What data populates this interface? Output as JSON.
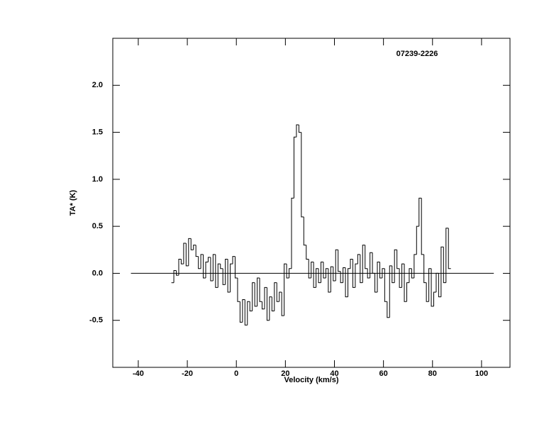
{
  "chart_data": {
    "type": "step",
    "title": "07239-2226",
    "x_label": "Velocity (km/s)",
    "y_label": "TA* (K)",
    "xlim": [
      -50.4,
      111.6
    ],
    "ylim": [
      -1.0,
      2.5
    ],
    "xticks": [
      -40,
      -20,
      0,
      20,
      40,
      60,
      80,
      100
    ],
    "yticks": [
      -0.5,
      {
        "value": 0,
        "label": "0.0"
      },
      0.5,
      {
        "value": 1,
        "label": "1.0"
      },
      1.5,
      {
        "value": 2,
        "label": "2.0"
      }
    ],
    "hline": {
      "y": 0,
      "xmin": -43,
      "xmax": 105
    },
    "color": "#000000",
    "x": [
      -26,
      -25,
      -24,
      -23,
      -22,
      -21,
      -20,
      -19,
      -18,
      -17,
      -16,
      -15,
      -14,
      -13,
      -12,
      -11,
      -10,
      -9,
      -8,
      -7,
      -6,
      -5,
      -4,
      -3,
      -2,
      -1,
      0,
      1,
      2,
      3,
      4,
      5,
      6,
      7,
      8,
      9,
      10,
      11,
      12,
      13,
      14,
      15,
      16,
      17,
      18,
      19,
      20,
      21,
      22,
      23,
      24,
      25,
      26,
      27,
      28,
      29,
      30,
      31,
      32,
      33,
      34,
      35,
      36,
      37,
      38,
      39,
      40,
      41,
      42,
      43,
      44,
      45,
      46,
      47,
      48,
      49,
      50,
      51,
      52,
      53,
      54,
      55,
      56,
      57,
      58,
      59,
      60,
      61,
      62,
      63,
      64,
      65,
      66,
      67,
      68,
      69,
      70,
      71,
      72,
      73,
      74,
      75,
      76,
      77,
      78,
      79,
      80,
      81,
      82,
      83,
      84,
      85,
      86,
      87
    ],
    "values": [
      -0.1,
      0.03,
      -0.02,
      0.15,
      0.1,
      0.32,
      0.08,
      0.37,
      0.25,
      0.3,
      0.18,
      0.05,
      0.2,
      -0.05,
      0.12,
      0.17,
      -0.08,
      0.2,
      -0.15,
      0.1,
      0.05,
      -0.12,
      0.15,
      -0.2,
      0.1,
      0.18,
      -0.05,
      -0.3,
      -0.52,
      -0.28,
      -0.55,
      -0.3,
      -0.4,
      -0.1,
      -0.35,
      -0.05,
      -0.3,
      -0.38,
      -0.15,
      -0.5,
      -0.25,
      -0.4,
      -0.1,
      -0.3,
      -0.2,
      -0.45,
      0.1,
      -0.05,
      0.05,
      0.8,
      1.45,
      1.58,
      1.5,
      0.6,
      0.3,
      0.15,
      -0.05,
      0.12,
      -0.15,
      0.05,
      -0.1,
      0.12,
      -0.05,
      0.05,
      -0.2,
      0.07,
      -0.08,
      0.25,
      0.02,
      -0.1,
      0.06,
      -0.25,
      0.05,
      0.15,
      -0.15,
      0.1,
      0.2,
      -0.1,
      0.3,
      0.05,
      -0.05,
      0.22,
      0.0,
      -0.2,
      0.12,
      -0.05,
      0.05,
      -0.3,
      -0.47,
      0.08,
      -0.1,
      0.25,
      0.05,
      -0.15,
      0.1,
      -0.3,
      -0.1,
      0.05,
      -0.05,
      0.2,
      0.5,
      0.8,
      0.2,
      -0.1,
      -0.3,
      0.05,
      -0.35,
      -0.2,
      0.0,
      -0.25,
      0.28,
      -0.1,
      0.48,
      0.05
    ]
  }
}
